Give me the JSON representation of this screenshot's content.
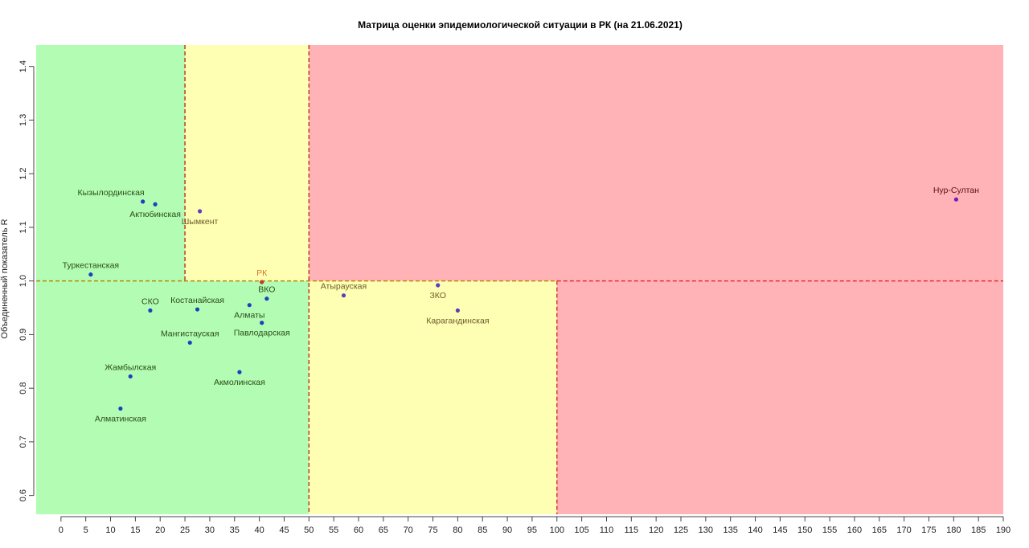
{
  "chart_data": {
    "type": "scatter",
    "title": "Матрица оценки эпидемиологической ситуации в РК (на 21.06.2021)",
    "xlabel": "",
    "ylabel": "Объединенный показатель R",
    "xlim": [
      -5,
      190
    ],
    "ylim": [
      0.565,
      1.44
    ],
    "x_ticks": [
      0,
      5,
      10,
      15,
      20,
      25,
      30,
      35,
      40,
      45,
      50,
      55,
      60,
      65,
      70,
      75,
      80,
      85,
      90,
      95,
      100,
      105,
      110,
      115,
      120,
      125,
      130,
      135,
      140,
      145,
      150,
      155,
      160,
      165,
      170,
      175,
      180,
      185,
      190
    ],
    "y_ticks": [
      0.6,
      0.7,
      0.8,
      0.9,
      1.0,
      1.1,
      1.2,
      1.3,
      1.4
    ],
    "grid": false,
    "zones": [
      {
        "x": [
          -5,
          25
        ],
        "y": [
          1.0,
          1.44
        ],
        "color": "#b3fcb3"
      },
      {
        "x": [
          25,
          50
        ],
        "y": [
          1.0,
          1.44
        ],
        "color": "#ffffb3"
      },
      {
        "x": [
          50,
          190
        ],
        "y": [
          1.0,
          1.44
        ],
        "color": "#ffb3b6"
      },
      {
        "x": [
          -5,
          50
        ],
        "y": [
          0.565,
          1.0
        ],
        "color": "#b3fcb3"
      },
      {
        "x": [
          50,
          100
        ],
        "y": [
          0.565,
          1.0
        ],
        "color": "#ffffb3"
      },
      {
        "x": [
          100,
          190
        ],
        "y": [
          0.565,
          1.0
        ],
        "color": "#ffb3b6"
      }
    ],
    "threshold_lines": [
      {
        "orientation": "vertical",
        "value": 25,
        "y": [
          1.0,
          1.44
        ],
        "color": "#c0392b"
      },
      {
        "orientation": "vertical",
        "value": 50,
        "y": [
          0.565,
          1.44
        ],
        "color": "#c0392b"
      },
      {
        "orientation": "vertical",
        "value": 100,
        "y": [
          0.565,
          1.0
        ],
        "color": "#d63a3a"
      },
      {
        "orientation": "horizontal",
        "value": 1.0,
        "x": [
          -5,
          100
        ],
        "color": "#b8860b"
      },
      {
        "orientation": "horizontal",
        "value": 1.0,
        "x": [
          100,
          190
        ],
        "color": "#e03030"
      }
    ],
    "points": [
      {
        "label": "Кызылординская",
        "x": 16.5,
        "y": 1.148,
        "label_pos": "above-left",
        "color": "#1f3fbf",
        "label_color": "#2a4d1a"
      },
      {
        "label": "Актюбинская",
        "x": 19,
        "y": 1.143,
        "label_pos": "below",
        "color": "#1f3fbf",
        "label_color": "#2a4d1a"
      },
      {
        "label": "Шымкент",
        "x": 28,
        "y": 1.13,
        "label_pos": "below",
        "color": "#5b3fbf",
        "label_color": "#6b5a2a"
      },
      {
        "label": "Туркестанская",
        "x": 6,
        "y": 1.012,
        "label_pos": "above",
        "color": "#1f3fbf",
        "label_color": "#2a4d1a"
      },
      {
        "label": "РК",
        "x": 40.5,
        "y": 0.998,
        "label_pos": "above",
        "color": "#c0392b",
        "label_color": "#d4732a"
      },
      {
        "label": "ВКО",
        "x": 41.5,
        "y": 0.967,
        "label_pos": "above",
        "color": "#1f3fbf",
        "label_color": "#2a4d1a"
      },
      {
        "label": "СКО",
        "x": 18,
        "y": 0.945,
        "label_pos": "above",
        "color": "#1f3fbf",
        "label_color": "#2a4d1a"
      },
      {
        "label": "Костанайская",
        "x": 27.5,
        "y": 0.947,
        "label_pos": "above",
        "color": "#1f3fbf",
        "label_color": "#2a4d1a"
      },
      {
        "label": "Алматы",
        "x": 38,
        "y": 0.955,
        "label_pos": "below",
        "color": "#1f3fbf",
        "label_color": "#2a4d1a"
      },
      {
        "label": "Павлодарская",
        "x": 40.5,
        "y": 0.922,
        "label_pos": "below",
        "color": "#1f3fbf",
        "label_color": "#2a4d1a"
      },
      {
        "label": "Мангистауская",
        "x": 26,
        "y": 0.885,
        "label_pos": "above",
        "color": "#1f3fbf",
        "label_color": "#2a4d1a"
      },
      {
        "label": "Жамбылская",
        "x": 14,
        "y": 0.822,
        "label_pos": "above",
        "color": "#1f3fbf",
        "label_color": "#2a4d1a"
      },
      {
        "label": "Акмолинская",
        "x": 36,
        "y": 0.83,
        "label_pos": "below",
        "color": "#1f3fbf",
        "label_color": "#2a4d1a"
      },
      {
        "label": "Алматинская",
        "x": 12,
        "y": 0.762,
        "label_pos": "below",
        "color": "#1f3fbf",
        "label_color": "#2a4d1a"
      },
      {
        "label": "Атырауская",
        "x": 57,
        "y": 0.973,
        "label_pos": "above",
        "color": "#5b3fbf",
        "label_color": "#6b5a2a"
      },
      {
        "label": "ЗКО",
        "x": 76,
        "y": 0.992,
        "label_pos": "below",
        "color": "#5b3fbf",
        "label_color": "#6b5a2a"
      },
      {
        "label": "Карагандинская",
        "x": 80,
        "y": 0.945,
        "label_pos": "below",
        "color": "#5b3fbf",
        "label_color": "#6b5a2a"
      },
      {
        "label": "Нур-Султан",
        "x": 180.5,
        "y": 1.152,
        "label_pos": "above",
        "color": "#6a1fbf",
        "label_color": "#5a0f0f"
      }
    ]
  }
}
